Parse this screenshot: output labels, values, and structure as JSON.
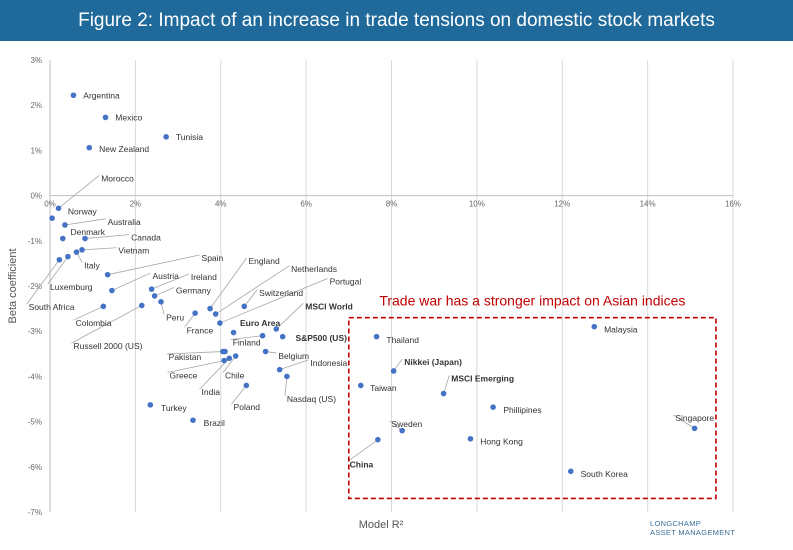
{
  "title": "Figure 2: Impact of an increase in trade tensions on domestic stock markets",
  "brand": {
    "line1": "LONGCHAMP",
    "line2": "ASSET MANAGEMENT"
  },
  "colors": {
    "title_bg": "#1f6a9a",
    "marker": "#4472c4",
    "leader": "#a6a6a6",
    "annotation": "#c00000",
    "grid": "#d9d9d9"
  },
  "chart_data": {
    "type": "scatter",
    "xlabel": "Model R²",
    "ylabel": "Beta coefficient",
    "xlim": [
      0,
      16
    ],
    "ylim": [
      -7,
      3
    ],
    "x_ticks": [
      "0%",
      "2%",
      "4%",
      "6%",
      "8%",
      "10%",
      "12%",
      "14%",
      "16%"
    ],
    "y_ticks": [
      "3%",
      "2%",
      "1%",
      "0%",
      "-1%",
      "-2%",
      "-3%",
      "-4%",
      "-5%",
      "-6%",
      "-7%"
    ],
    "grid": "vertical",
    "annotation": {
      "text": "Trade war has a stronger impact on Asian indices",
      "box_x": [
        7.0,
        15.6
      ],
      "box_y": [
        -2.7,
        -6.7
      ]
    },
    "points": [
      {
        "name": "Argentina",
        "x": 0.55,
        "y": 2.22,
        "lx": 0.78,
        "ly": 2.22,
        "anchor": "start"
      },
      {
        "name": "Mexico",
        "x": 1.3,
        "y": 1.73,
        "lx": 1.53,
        "ly": 1.73,
        "anchor": "start"
      },
      {
        "name": "Tunisia",
        "x": 2.72,
        "y": 1.3,
        "lx": 2.95,
        "ly": 1.3,
        "anchor": "start"
      },
      {
        "name": "New Zealand",
        "x": 0.92,
        "y": 1.06,
        "lx": 1.15,
        "ly": 1.03,
        "anchor": "start"
      },
      {
        "name": "Morocco",
        "x": 0.2,
        "y": -0.28,
        "lx": 1.2,
        "ly": 0.38,
        "anchor": "start",
        "leader": true
      },
      {
        "name": "Norway",
        "x": 0.05,
        "y": -0.5,
        "lx": 0.42,
        "ly": -0.35,
        "anchor": "start"
      },
      {
        "name": "Australia",
        "x": 0.35,
        "y": -0.65,
        "lx": 1.35,
        "ly": -0.58,
        "anchor": "start",
        "leader": true
      },
      {
        "name": "Denmark",
        "x": 0.3,
        "y": -0.95,
        "lx": 0.48,
        "ly": -0.8,
        "anchor": "start"
      },
      {
        "name": "Canada",
        "x": 0.82,
        "y": -0.95,
        "lx": 1.9,
        "ly": -0.93,
        "anchor": "start",
        "leader": true
      },
      {
        "name": "Vietnam",
        "x": 0.75,
        "y": -1.2,
        "lx": 1.6,
        "ly": -1.22,
        "anchor": "start",
        "leader": true
      },
      {
        "name": "Italy",
        "x": 0.62,
        "y": -1.25,
        "lx": 0.8,
        "ly": -1.55,
        "anchor": "start",
        "leader": true
      },
      {
        "name": "Spain",
        "x": 1.35,
        "y": -1.75,
        "lx": 3.55,
        "ly": -1.38,
        "anchor": "start",
        "leader": true
      },
      {
        "name": "Luxemburg",
        "x": 0.42,
        "y": -1.35,
        "lx": 0.0,
        "ly": -2.02,
        "anchor": "start",
        "leader": true
      },
      {
        "name": "South Africa",
        "x": 0.22,
        "y": -1.42,
        "lx": -0.5,
        "ly": -2.47,
        "anchor": "start",
        "leader": true
      },
      {
        "name": "Austria",
        "x": 1.45,
        "y": -2.1,
        "lx": 2.4,
        "ly": -1.78,
        "anchor": "start",
        "leader": true
      },
      {
        "name": "Ireland",
        "x": 2.38,
        "y": -2.07,
        "lx": 3.3,
        "ly": -1.8,
        "anchor": "start",
        "leader": true
      },
      {
        "name": "Germany",
        "x": 2.45,
        "y": -2.22,
        "lx": 2.95,
        "ly": -2.1,
        "anchor": "start",
        "leader": true
      },
      {
        "name": "Colombia",
        "x": 1.25,
        "y": -2.45,
        "lx": 0.6,
        "ly": -2.82,
        "anchor": "start",
        "leader": true
      },
      {
        "name": "Russell 2000 (US)",
        "x": 2.15,
        "y": -2.43,
        "lx": 0.55,
        "ly": -3.33,
        "anchor": "start",
        "leader": true
      },
      {
        "name": "Peru",
        "x": 2.6,
        "y": -2.35,
        "lx": 2.72,
        "ly": -2.7,
        "anchor": "start",
        "leader": true
      },
      {
        "name": "England",
        "x": 3.75,
        "y": -2.5,
        "lx": 4.65,
        "ly": -1.45,
        "anchor": "start",
        "leader": true
      },
      {
        "name": "France",
        "x": 3.4,
        "y": -2.6,
        "lx": 3.2,
        "ly": -2.98,
        "anchor": "start",
        "leader": true
      },
      {
        "name": "Netherlands",
        "x": 3.88,
        "y": -2.62,
        "lx": 5.65,
        "ly": -1.62,
        "anchor": "start",
        "leader": true
      },
      {
        "name": "Portugal",
        "x": 3.98,
        "y": -2.82,
        "lx": 6.55,
        "ly": -1.9,
        "anchor": "start",
        "leader": true
      },
      {
        "name": "Switzerland",
        "x": 4.55,
        "y": -2.45,
        "lx": 4.9,
        "ly": -2.15,
        "anchor": "start",
        "leader": true
      },
      {
        "name": "Euro Area",
        "x": 4.3,
        "y": -3.03,
        "lx": 4.45,
        "ly": -2.82,
        "anchor": "start",
        "bold": true
      },
      {
        "name": "MSCI World",
        "x": 5.3,
        "y": -2.95,
        "lx": 5.98,
        "ly": -2.45,
        "anchor": "start",
        "bold": true,
        "leader": true
      },
      {
        "name": "Finland",
        "x": 4.98,
        "y": -3.1,
        "lx": 4.28,
        "ly": -3.25,
        "anchor": "start",
        "leader": true
      },
      {
        "name": "S&P500 (US)",
        "x": 5.45,
        "y": -3.12,
        "lx": 5.75,
        "ly": -3.15,
        "anchor": "start",
        "bold": true
      },
      {
        "name": "Pakistan",
        "x": 4.05,
        "y": -3.45,
        "lx": 2.78,
        "ly": -3.57,
        "anchor": "start",
        "leader": true
      },
      {
        "name": "Belgium",
        "x": 5.05,
        "y": -3.45,
        "lx": 5.35,
        "ly": -3.55,
        "anchor": "start",
        "leader": true
      },
      {
        "name": "Pakistan2",
        "x": 4.1,
        "y": -3.45,
        "hidden": true
      },
      {
        "name": "Greece",
        "x": 4.08,
        "y": -3.65,
        "lx": 2.8,
        "ly": -3.98,
        "anchor": "start",
        "leader": true
      },
      {
        "name": "Chile",
        "x": 4.35,
        "y": -3.55,
        "lx": 4.1,
        "ly": -3.98,
        "anchor": "start",
        "leader": true
      },
      {
        "name": "Indonesia",
        "x": 5.38,
        "y": -3.85,
        "lx": 6.1,
        "ly": -3.7,
        "anchor": "start",
        "leader": true
      },
      {
        "name": "Nasdaq (US)",
        "x": 5.55,
        "y": -4.0,
        "lx": 5.55,
        "ly": -4.5,
        "anchor": "start",
        "leader": true
      },
      {
        "name": "India",
        "x": 4.2,
        "y": -3.6,
        "lx": 3.55,
        "ly": -4.35,
        "anchor": "start",
        "leader": true
      },
      {
        "name": "Poland",
        "x": 4.6,
        "y": -4.2,
        "lx": 4.3,
        "ly": -4.68,
        "anchor": "start",
        "leader": true
      },
      {
        "name": "Turkey",
        "x": 2.35,
        "y": -4.63,
        "lx": 2.6,
        "ly": -4.7,
        "anchor": "start"
      },
      {
        "name": "Brazil",
        "x": 3.35,
        "y": -4.97,
        "lx": 3.6,
        "ly": -5.03,
        "anchor": "start"
      },
      {
        "name": "Thailand",
        "x": 7.65,
        "y": -3.12,
        "lx": 7.88,
        "ly": -3.2,
        "anchor": "start"
      },
      {
        "name": "Malaysia",
        "x": 12.75,
        "y": -2.9,
        "lx": 12.98,
        "ly": -2.96,
        "anchor": "start"
      },
      {
        "name": "Nikkei (Japan)",
        "x": 8.05,
        "y": -3.88,
        "lx": 8.3,
        "ly": -3.68,
        "anchor": "start",
        "bold": true,
        "leader": true
      },
      {
        "name": "Taiwan",
        "x": 7.28,
        "y": -4.2,
        "lx": 7.5,
        "ly": -4.26,
        "anchor": "start"
      },
      {
        "name": "MSCI Emerging",
        "x": 9.22,
        "y": -4.38,
        "lx": 9.4,
        "ly": -4.05,
        "anchor": "start",
        "bold": true,
        "leader": true
      },
      {
        "name": "Phillipines",
        "x": 10.38,
        "y": -4.68,
        "lx": 10.62,
        "ly": -4.74,
        "anchor": "start"
      },
      {
        "name": "Singapore",
        "x": 15.1,
        "y": -5.15,
        "lx": 14.65,
        "ly": -4.92,
        "anchor": "start",
        "leader": true
      },
      {
        "name": "Sweden",
        "x": 8.25,
        "y": -5.2,
        "lx": 8.0,
        "ly": -5.05,
        "anchor": "start",
        "leader": true
      },
      {
        "name": "Hong Kong",
        "x": 9.85,
        "y": -5.38,
        "lx": 10.08,
        "ly": -5.44,
        "anchor": "start"
      },
      {
        "name": "China",
        "x": 7.68,
        "y": -5.4,
        "lx": 7.02,
        "ly": -5.95,
        "anchor": "start",
        "bold": true,
        "leader": true
      },
      {
        "name": "South Korea",
        "x": 12.2,
        "y": -6.1,
        "lx": 12.43,
        "ly": -6.16,
        "anchor": "start"
      }
    ]
  }
}
